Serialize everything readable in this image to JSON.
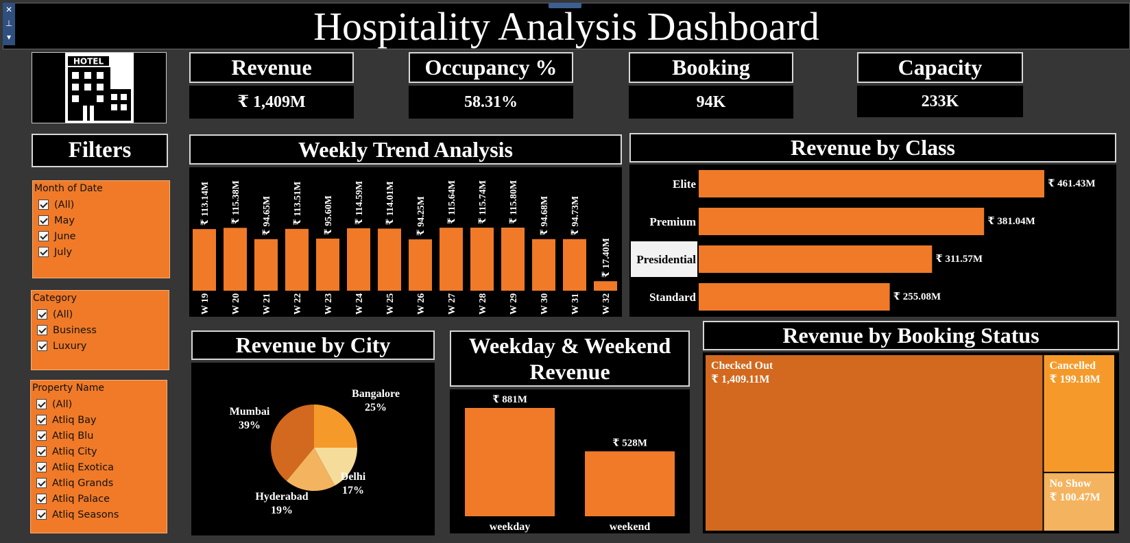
{
  "dashboard": {
    "title": "Hospitality Analysis Dashboard"
  },
  "logo": {
    "label": "HOTEL",
    "icon": "hotel-building-icon"
  },
  "kpis": [
    {
      "title": "Revenue",
      "value": "₹ 1,409M"
    },
    {
      "title": "Occupancy %",
      "value": "58.31%"
    },
    {
      "title": "Booking",
      "value": "94K"
    },
    {
      "title": "Capacity",
      "value": "233K"
    }
  ],
  "filters": {
    "title": "Filters",
    "groups": [
      {
        "header": "Month of Date",
        "items": [
          "(All)",
          "May",
          "June",
          "July"
        ]
      },
      {
        "header": "Category",
        "items": [
          "(All)",
          "Business",
          "Luxury"
        ]
      },
      {
        "header": "Property Name",
        "items": [
          "(All)",
          "Atliq Bay",
          "Atliq Blu",
          "Atliq City",
          "Atliq Exotica",
          "Atliq Grands",
          "Atliq Palace",
          "Atliq Seasons"
        ]
      }
    ]
  },
  "sections": {
    "weekly": "Weekly Trend Analysis",
    "class": "Revenue by Class",
    "city": "Revenue by City",
    "weekday_line1": "Weekday & Weekend",
    "weekday_line2": "Revenue",
    "status": "Revenue by Booking Status"
  },
  "colors": {
    "accent": "#f07a28",
    "dark": "#d2691e",
    "light": "#f4b35f",
    "pale": "#f6dc9a",
    "mid": "#f59a2a"
  },
  "chart_data": [
    {
      "type": "bar",
      "name": "weekly",
      "categories": [
        "W 19",
        "W 20",
        "W 21",
        "W 22",
        "W 23",
        "W 24",
        "W 25",
        "W 26",
        "W 27",
        "W 28",
        "W 29",
        "W 30",
        "W 31",
        "W 32"
      ],
      "values": [
        113.14,
        115.38,
        94.65,
        113.51,
        95.6,
        114.59,
        114.01,
        94.25,
        115.64,
        115.74,
        115.8,
        94.68,
        94.73,
        17.4
      ],
      "labels": [
        "₹ 113.14M",
        "₹ 115.38M",
        "₹ 94.65M",
        "₹ 113.51M",
        "₹ 95.60M",
        "₹ 114.59M",
        "₹ 114.01M",
        "₹ 94.25M",
        "₹ 115.64M",
        "₹ 115.74M",
        "₹ 115.80M",
        "₹ 94.68M",
        "₹ 94.73M",
        "₹ 17.40M"
      ]
    },
    {
      "type": "bar",
      "name": "class",
      "categories": [
        "Elite",
        "Premium",
        "Presidential",
        "Standard"
      ],
      "values": [
        461.43,
        381.04,
        311.57,
        255.08
      ],
      "labels": [
        "₹ 461.43M",
        "₹ 381.04M",
        "₹ 311.57M",
        "₹ 255.08M"
      ],
      "highlighted": "Presidential"
    },
    {
      "type": "pie",
      "name": "city",
      "categories": [
        "Bangalore",
        "Delhi",
        "Hyderabad",
        "Mumbai"
      ],
      "values": [
        25,
        17,
        19,
        39
      ],
      "labels": [
        "25%",
        "17%",
        "19%",
        "39%"
      ],
      "colors": [
        "#f59a2a",
        "#f6dc9a",
        "#f4b35f",
        "#d2691e"
      ]
    },
    {
      "type": "bar",
      "name": "weekday",
      "categories": [
        "weekday",
        "weekend"
      ],
      "values": [
        881,
        528
      ],
      "labels": [
        "₹ 881M",
        "₹ 528M"
      ]
    },
    {
      "type": "heatmap",
      "name": "status",
      "categories": [
        "Checked Out",
        "Cancelled",
        "No Show"
      ],
      "values": [
        1409.11,
        199.18,
        100.47
      ],
      "labels": [
        "₹ 1,409.11M",
        "₹ 199.18M",
        "₹ 100.47M"
      ]
    }
  ]
}
